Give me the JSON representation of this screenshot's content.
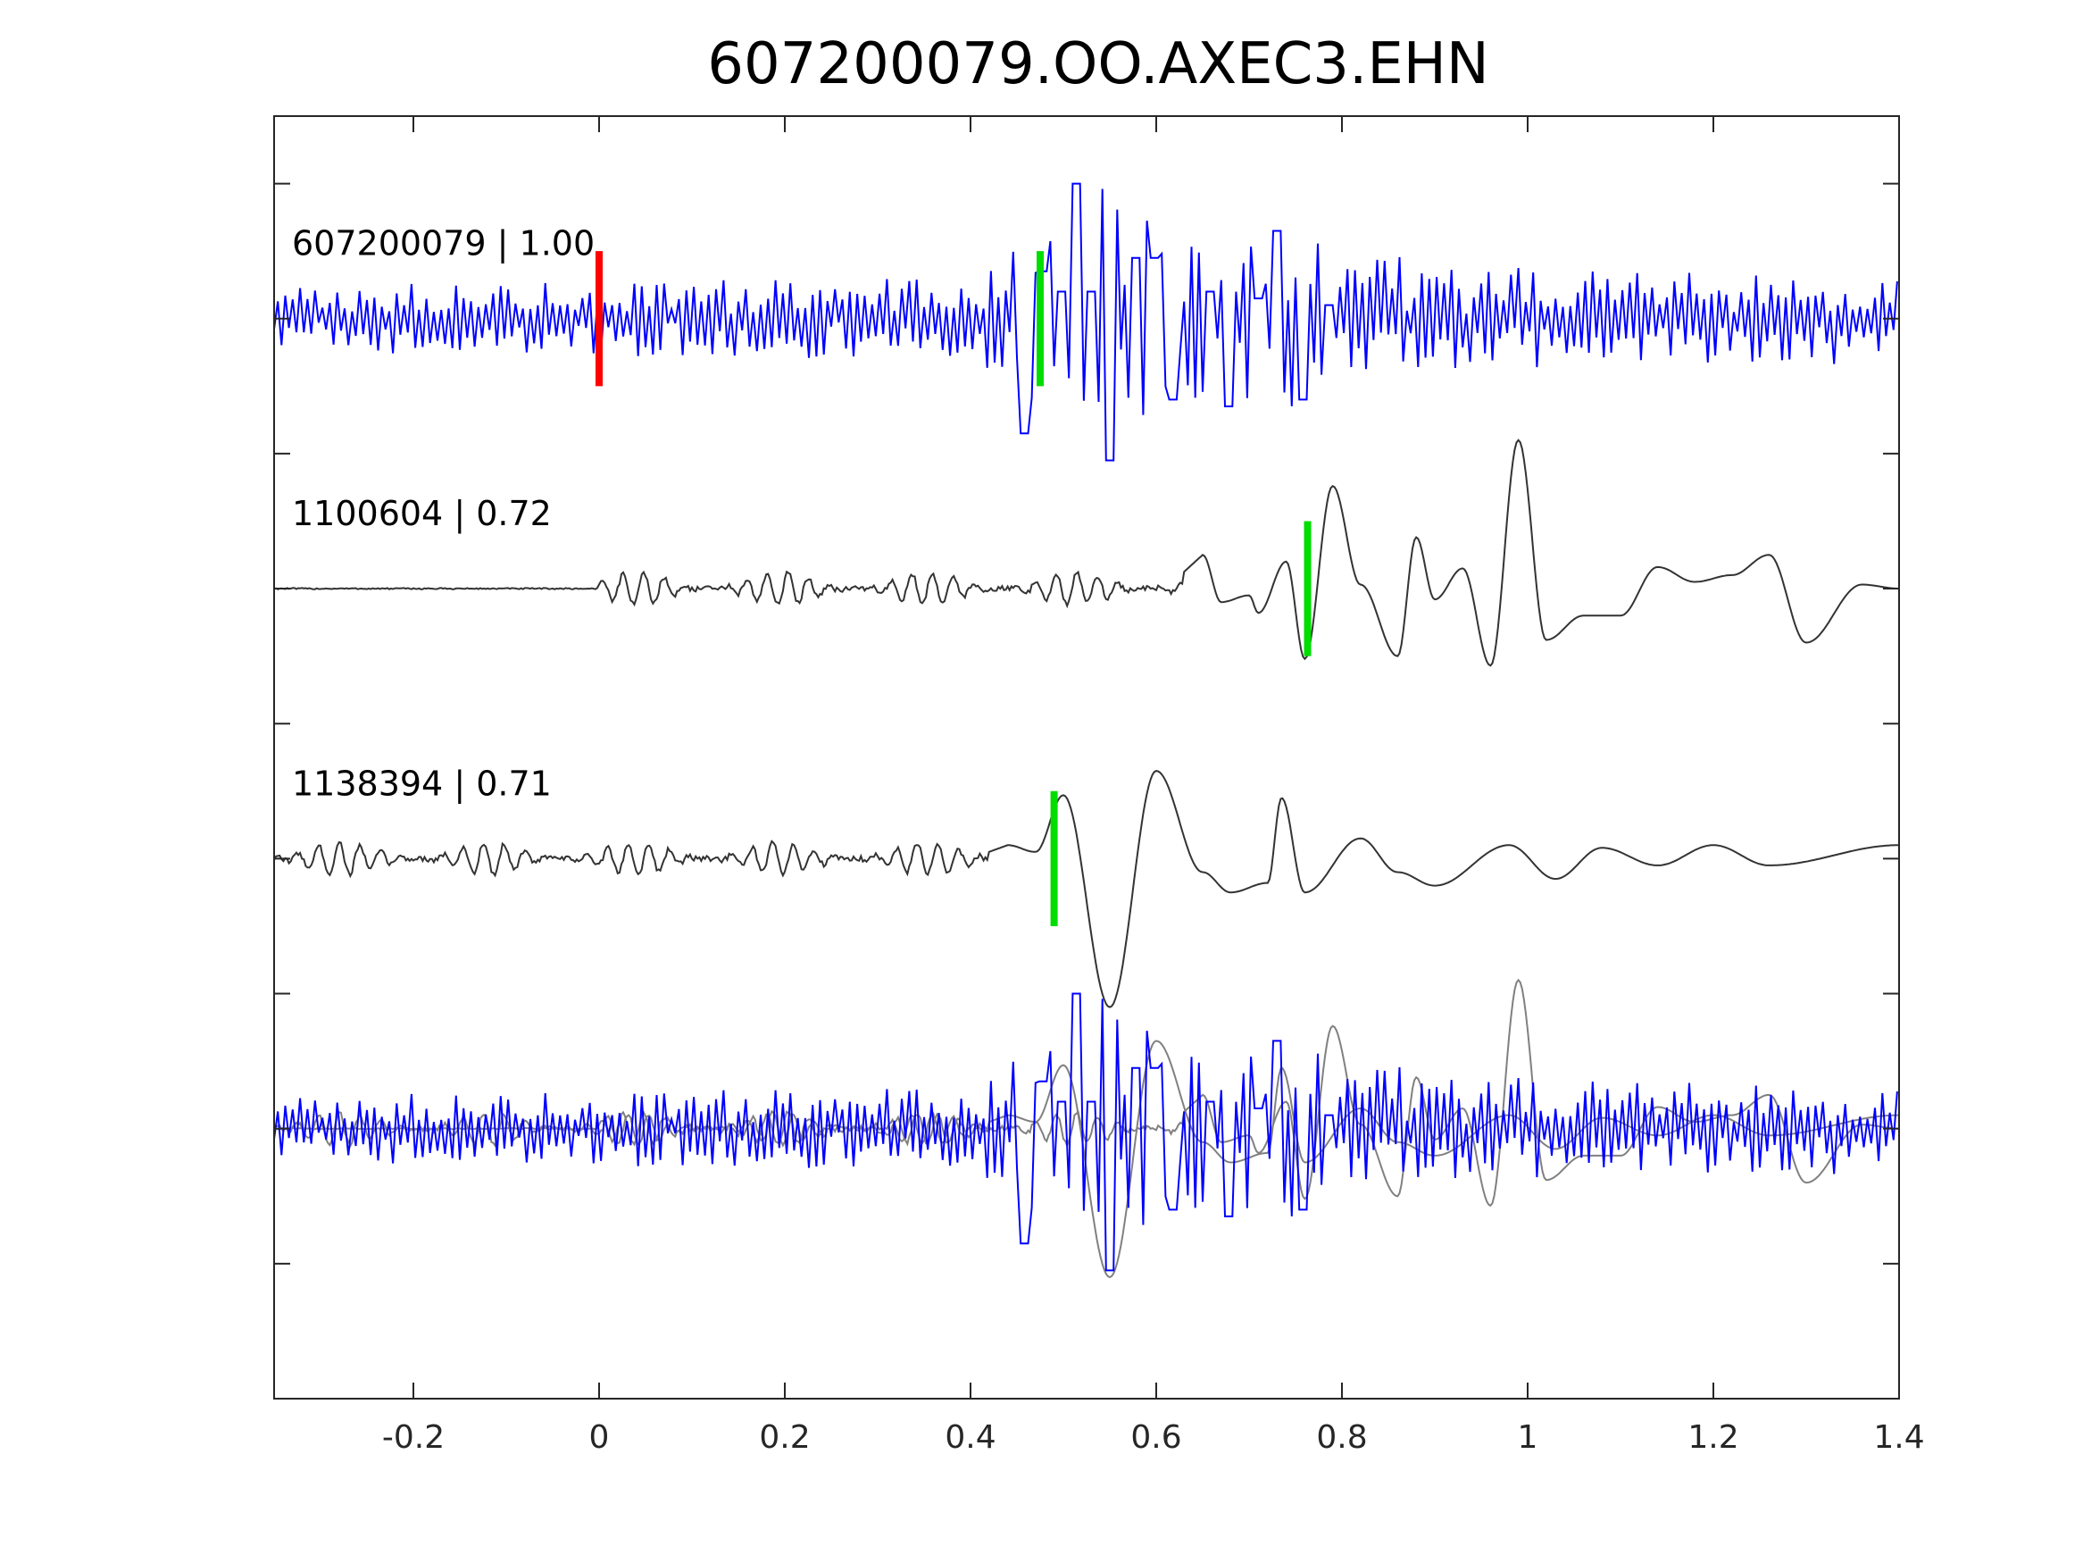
{
  "chart_data": {
    "type": "line",
    "title": "607200079.OO.AXEC3.EHN",
    "xlabel": "",
    "ylabel": "",
    "xlim": [
      -0.35,
      1.4
    ],
    "ylim": [
      0,
      9.5
    ],
    "x_ticks": [
      {
        "value": -0.2,
        "label": "-0.2"
      },
      {
        "value": 0,
        "label": "0"
      },
      {
        "value": 0.2,
        "label": "0.2"
      },
      {
        "value": 0.4,
        "label": "0.4"
      },
      {
        "value": 0.6,
        "label": "0.6"
      },
      {
        "value": 0.8,
        "label": "0.8"
      },
      {
        "value": 1,
        "label": "1"
      },
      {
        "value": 1.2,
        "label": "1.2"
      },
      {
        "value": 1.4,
        "label": "1.4"
      }
    ],
    "y_ticks": [
      1,
      2,
      3,
      4,
      5,
      6,
      7,
      8,
      9
    ],
    "grid": false,
    "colors": {
      "target": "#0000ff",
      "template": "#333333",
      "overlay_template": "#808080",
      "origin_marker": "#ff0000",
      "pick_marker": "#00dd00",
      "axes": "#262626"
    },
    "traces": [
      {
        "label": "607200079 | 1.00",
        "offset": 8,
        "color": "#0000ff",
        "kind": "noisy",
        "amplitude_profile": {
          "x": [
            -0.35,
            0.4,
            0.46,
            0.5,
            0.52,
            0.55,
            0.6,
            0.73,
            0.76,
            0.9,
            1.4
          ],
          "y": [
            0.25,
            0.3,
            0.55,
            0.9,
            1.0,
            1.05,
            0.75,
            0.65,
            0.6,
            0.4,
            0.3
          ]
        },
        "origin_marker_x": 0.0,
        "pick_x": 0.475
      },
      {
        "label": "1100604 | 0.72",
        "offset": 6,
        "color": "#333333",
        "kind": "smooth",
        "quiet_until": 0.0,
        "features": [
          {
            "x": 0.65,
            "y": 0.25
          },
          {
            "x": 0.67,
            "y": -0.1
          },
          {
            "x": 0.7,
            "y": -0.05
          },
          {
            "x": 0.71,
            "y": -0.18
          },
          {
            "x": 0.74,
            "y": 0.2
          },
          {
            "x": 0.76,
            "y": -0.52
          },
          {
            "x": 0.79,
            "y": 0.76
          },
          {
            "x": 0.82,
            "y": 0.03
          },
          {
            "x": 0.86,
            "y": -0.5
          },
          {
            "x": 0.88,
            "y": 0.38
          },
          {
            "x": 0.9,
            "y": -0.08
          },
          {
            "x": 0.93,
            "y": 0.15
          },
          {
            "x": 0.96,
            "y": -0.57
          },
          {
            "x": 0.99,
            "y": 1.1
          },
          {
            "x": 1.02,
            "y": -0.38
          },
          {
            "x": 1.06,
            "y": -0.2
          },
          {
            "x": 1.1,
            "y": -0.2
          },
          {
            "x": 1.14,
            "y": 0.16
          },
          {
            "x": 1.18,
            "y": 0.05
          },
          {
            "x": 1.22,
            "y": 0.1
          },
          {
            "x": 1.26,
            "y": 0.25
          },
          {
            "x": 1.3,
            "y": -0.4
          },
          {
            "x": 1.36,
            "y": 0.03
          },
          {
            "x": 1.4,
            "y": 0.0
          }
        ],
        "pick_x": 0.763
      },
      {
        "label": "1138394 | 0.71",
        "offset": 4,
        "color": "#333333",
        "kind": "smooth",
        "quiet_until": -0.35,
        "features": [
          {
            "x": 0.44,
            "y": 0.1
          },
          {
            "x": 0.47,
            "y": 0.05
          },
          {
            "x": 0.5,
            "y": 0.47
          },
          {
            "x": 0.55,
            "y": -1.1
          },
          {
            "x": 0.6,
            "y": 0.65
          },
          {
            "x": 0.65,
            "y": -0.1
          },
          {
            "x": 0.68,
            "y": -0.25
          },
          {
            "x": 0.72,
            "y": -0.18
          },
          {
            "x": 0.735,
            "y": 0.45
          },
          {
            "x": 0.76,
            "y": -0.25
          },
          {
            "x": 0.82,
            "y": 0.15
          },
          {
            "x": 0.86,
            "y": -0.1
          },
          {
            "x": 0.9,
            "y": -0.2
          },
          {
            "x": 0.98,
            "y": 0.1
          },
          {
            "x": 1.03,
            "y": -0.15
          },
          {
            "x": 1.08,
            "y": 0.08
          },
          {
            "x": 1.14,
            "y": -0.05
          },
          {
            "x": 1.2,
            "y": 0.1
          },
          {
            "x": 1.26,
            "y": -0.05
          },
          {
            "x": 1.4,
            "y": 0.1
          }
        ],
        "pick_x": 0.49
      },
      {
        "label": "",
        "offset": 2,
        "kind": "overlay",
        "components": [
          "607200079 | 1.00",
          "1100604 | 0.72",
          "1138394 | 0.71"
        ]
      }
    ]
  }
}
